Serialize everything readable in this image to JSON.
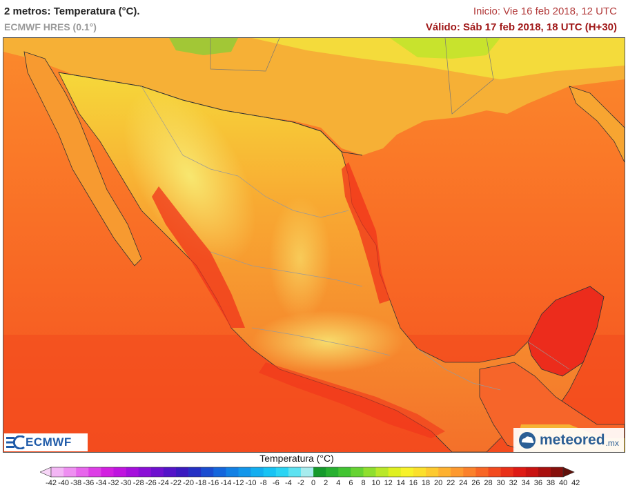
{
  "header": {
    "title": "2 metros: Temperatura (°C).",
    "subtitle": "ECMWF HRES (0.1°)",
    "init": "Inicio: Vie 16 feb 2018, 12 UTC",
    "valid": "Válido: Sáb 17 feb 2018, 18 UTC (H+30)"
  },
  "logos": {
    "ecmwf": "ECMWF",
    "meteored": "meteored",
    "meteored_tld": ".mx"
  },
  "colorbar": {
    "title": "Temperatura (°C)",
    "labels": [
      "-42",
      "-40",
      "-38",
      "-36",
      "-34",
      "-32",
      "-30",
      "-28",
      "-26",
      "-24",
      "-22",
      "-20",
      "-18",
      "-16",
      "-14",
      "-12",
      "-10",
      "-8",
      "-6",
      "-4",
      "-2",
      "0",
      "2",
      "4",
      "6",
      "8",
      "10",
      "12",
      "14",
      "16",
      "18",
      "20",
      "22",
      "24",
      "26",
      "28",
      "30",
      "32",
      "34",
      "36",
      "38",
      "40",
      "42"
    ],
    "colors": [
      "#f7d6f7",
      "#f3b6f5",
      "#ee8ff1",
      "#e766ec",
      "#dd3ee6",
      "#d21fe0",
      "#bf14df",
      "#a50fdc",
      "#8a0fd6",
      "#6e10cf",
      "#5313c8",
      "#3a1ac0",
      "#2430c4",
      "#1a4cd0",
      "#1466dc",
      "#1280e4",
      "#1296ea",
      "#13aef0",
      "#17c3f4",
      "#2ad4f4",
      "#5de2f1",
      "#a7ecee",
      "#159a2c",
      "#27b030",
      "#42c432",
      "#66d332",
      "#8fdf2e",
      "#b9e829",
      "#dff021",
      "#f7f22a",
      "#fbe02c",
      "#fdca2f",
      "#feb130",
      "#fd992f",
      "#fb812b",
      "#f86625",
      "#f24a1e",
      "#e93018",
      "#de1a14",
      "#c91211",
      "#a8100f",
      "#86100c",
      "#60110a"
    ]
  }
}
